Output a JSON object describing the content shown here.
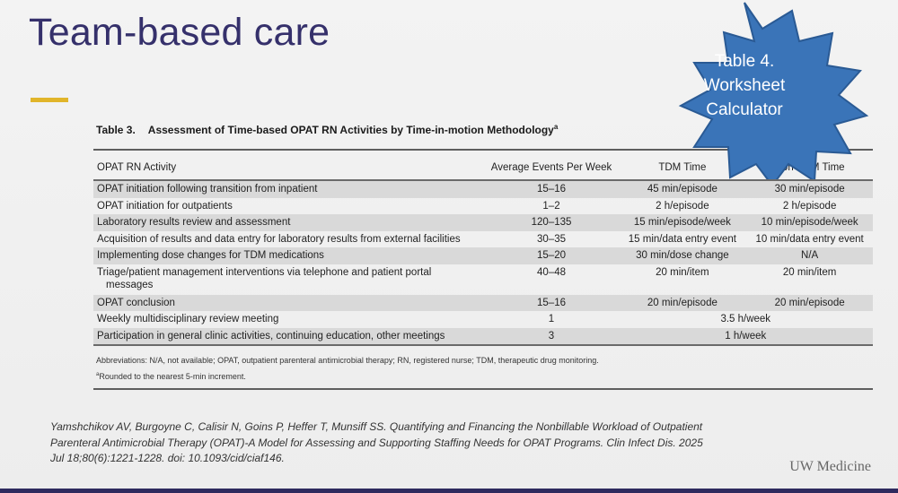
{
  "slide": {
    "title": "Team-based care"
  },
  "table": {
    "number": "Table 3.",
    "caption": "Assessment of Time-based OPAT RN Activities by Time-in-motion Methodology",
    "caption_marker": "a",
    "headers": [
      "OPAT RN Activity",
      "Average Events Per Week",
      "TDM Time",
      "Non-TDM Time"
    ],
    "rows": [
      {
        "activity": "OPAT initiation following transition from inpatient",
        "avg": "15–16",
        "tdm": "45 min/episode",
        "non_tdm": "30 min/episode"
      },
      {
        "activity": "OPAT initiation for outpatients",
        "avg": "1–2",
        "tdm": "2 h/episode",
        "non_tdm": "2 h/episode"
      },
      {
        "activity": "Laboratory results review and assessment",
        "avg": "120–135",
        "tdm": "15 min/episode/week",
        "non_tdm": "10 min/episode/week"
      },
      {
        "activity": "Acquisition of results and data entry for laboratory results from external facilities",
        "avg": "30–35",
        "tdm": "15 min/data entry event",
        "non_tdm": "10 min/data entry event"
      },
      {
        "activity": "Implementing dose changes for TDM medications",
        "avg": "15–20",
        "tdm": "30 min/dose change",
        "non_tdm": "N/A"
      },
      {
        "activity_line1": "Triage/patient management interventions via telephone and patient portal",
        "activity_line2": "messages",
        "avg": "40–48",
        "tdm": "20 min/item",
        "non_tdm": "20 min/item"
      },
      {
        "activity": "OPAT conclusion",
        "avg": "15–16",
        "tdm": "20 min/episode",
        "non_tdm": "20 min/episode"
      },
      {
        "activity": "Weekly multidisciplinary review meeting",
        "avg": "1",
        "combined": "3.5 h/week"
      },
      {
        "activity": "Participation in general clinic activities, continuing education, other meetings",
        "avg": "3",
        "combined": "1 h/week"
      }
    ],
    "abbreviations": "Abbreviations: N/A, not available; OPAT, outpatient parenteral antimicrobial therapy; RN, registered nurse; TDM, therapeutic drug monitoring.",
    "footnote_marker": "a",
    "footnote": "Rounded to the nearest 5-min increment."
  },
  "starburst": {
    "line1": "Table 4.",
    "line2": "Worksheet",
    "line3": "Calculator",
    "fill_color": "#3a74b8",
    "stroke_color": "#2a5a94"
  },
  "citation": {
    "line1": "Yamshchikov AV, Burgoyne C, Calisir N, Goins P, Heffer T, Munsiff SS. Quantifying and Financing the Nonbillable Workload of Outpatient",
    "line2": "Parenteral Antimicrobial Therapy (OPAT)-A Model for Assessing and Supporting Staffing Needs for OPAT Programs. Clin Infect Dis. 2025",
    "line3": "Jul 18;80(6):1221-1228. doi: 10.1093/cid/ciaf146."
  },
  "branding": {
    "logo": "UW Medicine"
  },
  "colors": {
    "title": "#35306b",
    "accent_bar": "#e1b52a",
    "row_shade": "#d9d9d9",
    "bottom_band": "#2e2a5e"
  }
}
